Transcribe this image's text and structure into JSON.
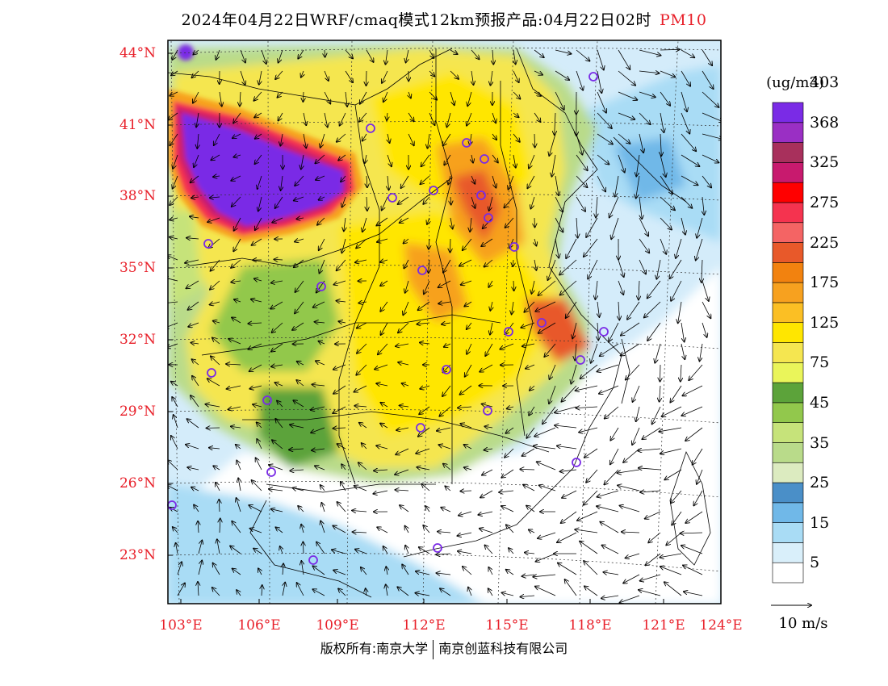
{
  "title": {
    "main": "2024年04月22日WRF/cmaq模式12km预报产品:04月22日02时",
    "variable": "PM10"
  },
  "lat_labels": [
    "44°N",
    "41°N",
    "38°N",
    "35°N",
    "32°N",
    "29°N",
    "26°N",
    "23°N"
  ],
  "lon_labels": [
    "103°E",
    "106°E",
    "109°E",
    "112°E",
    "115°E",
    "118°E",
    "121°E",
    "124°E"
  ],
  "legend": {
    "unit": "(ug/m3)",
    "colors": [
      "#ffffff",
      "#d9effa",
      "#a9dcf5",
      "#70b8e8",
      "#4a8fc8",
      "#dcebc0",
      "#b9db8a",
      "#c6e37a",
      "#92c84c",
      "#5ca33a",
      "#eaf55a",
      "#f5e650",
      "#ffe600",
      "#fbbf24",
      "#f7a11f",
      "#f2820f",
      "#e8592a",
      "#f46464",
      "#f5334f",
      "#ff0000",
      "#c81a6e",
      "#a8305c",
      "#9a2fc4",
      "#7a2be6"
    ],
    "labels": [
      "5",
      "15",
      "25",
      "35",
      "45",
      "75",
      "125",
      "175",
      "225",
      "275",
      "325",
      "368",
      "403"
    ]
  },
  "wind_scale": "10 m/s",
  "copyright": {
    "left": "版权所有:南京大学",
    "right": "南京创蓝科技有限公司"
  },
  "map_colors": {
    "sea": "#d4ecfa",
    "extreme": "#7a2be6"
  }
}
